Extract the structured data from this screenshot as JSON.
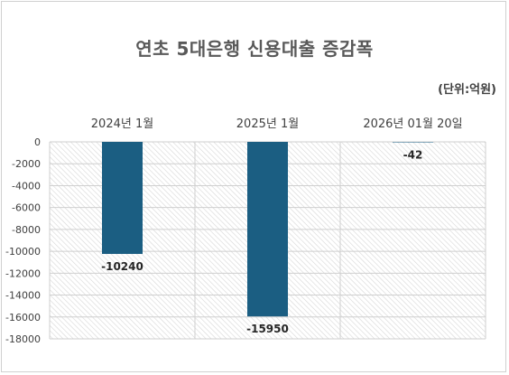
{
  "title": "연초 5대은행 신용대출 증감폭",
  "unit": "(단위:억원)",
  "colors": {
    "bar": "#1b5e82",
    "hatch": "#d6d6d6",
    "grid": "#cfcfcf"
  },
  "chart_data": {
    "type": "bar",
    "categories": [
      "2024년 1월",
      "2025년 1월",
      "2026년 01월 20일"
    ],
    "values": [
      -10240,
      -15950,
      -42
    ],
    "data_labels": [
      "-10240",
      "-15950",
      "-42"
    ],
    "ylim": [
      -18000,
      0
    ],
    "yticks": [
      0,
      -2000,
      -4000,
      -6000,
      -8000,
      -10000,
      -12000,
      -14000,
      -16000,
      -18000
    ],
    "grid": true,
    "category_axis_position": "top"
  }
}
